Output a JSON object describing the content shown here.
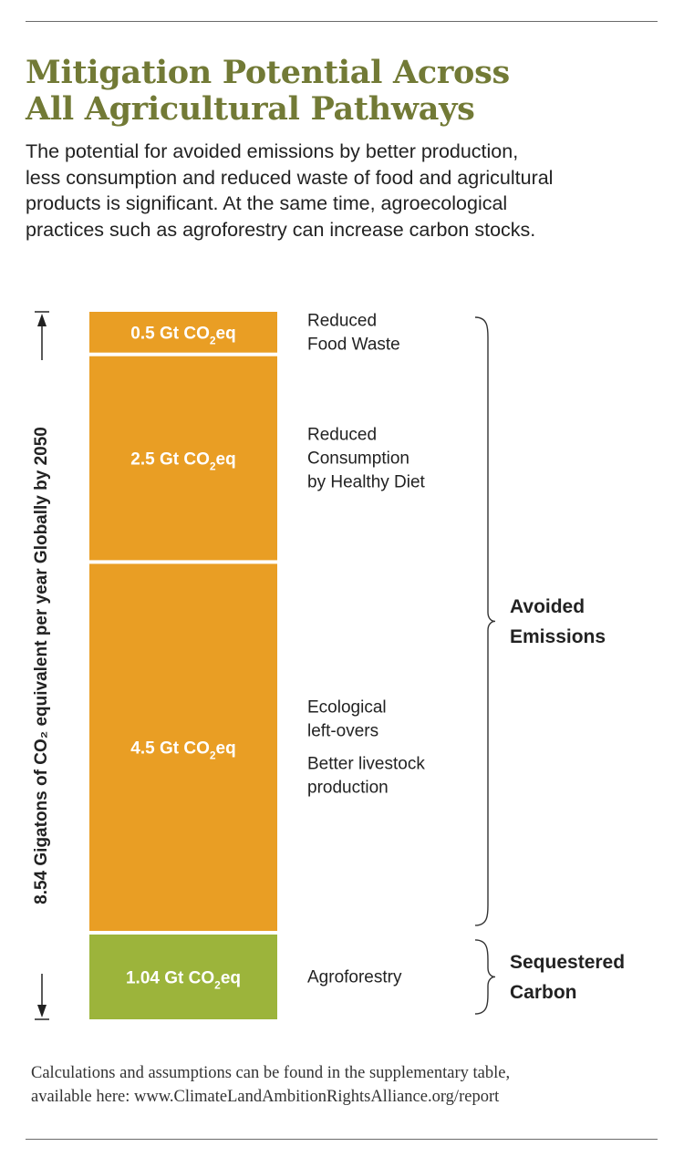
{
  "header": {
    "title_lines": [
      "Mitigation Potential Across",
      "All Agricultural Pathways"
    ],
    "subtitle_lines": [
      "The potential for avoided emissions by better production,",
      "less consumption and reduced waste of food and agricultural",
      "products is significant. At the same time, agroecological",
      "practices such as agroforestry can increase carbon stocks."
    ]
  },
  "chart_data": {
    "type": "bar",
    "stacked": true,
    "orientation": "vertical",
    "unit": "Gt CO2eq",
    "total": 8.54,
    "ylabel": "8.54 Gigatons of CO₂ equivalent per year Globally by 2050",
    "segments": [
      {
        "value": 0.5,
        "value_label": "0.5 Gt CO2eq",
        "label_lines": [
          [
            "Reduced",
            "Food Waste"
          ]
        ],
        "color": "#e99e24",
        "group": "Avoided Emissions"
      },
      {
        "value": 2.5,
        "value_label": "2.5 Gt CO2eq",
        "label_lines": [
          [
            "Reduced",
            "Consumption",
            "by Healthy Diet"
          ]
        ],
        "color": "#e99e24",
        "group": "Avoided Emissions"
      },
      {
        "value": 4.5,
        "value_label": "4.5 Gt CO2eq",
        "label_lines": [
          [
            "Ecological",
            "left-overs"
          ],
          [
            "Better livestock",
            "production"
          ]
        ],
        "color": "#e99e24",
        "group": "Avoided Emissions"
      },
      {
        "value": 1.04,
        "value_label": "1.04 Gt CO2eq",
        "label_lines": [
          [
            "Agroforestry"
          ]
        ],
        "color": "#9cb43b",
        "group": "Sequestered Carbon"
      }
    ],
    "groups": [
      {
        "name": "Avoided Emissions",
        "label_lines": [
          "Avoided",
          "Emissions"
        ]
      },
      {
        "name": "Sequestered Carbon",
        "label_lines": [
          "Sequestered",
          "Carbon"
        ]
      }
    ]
  },
  "footnote": {
    "lines": [
      "Calculations and assumptions can be found in the supplementary table,",
      "available here: www.ClimateLandAmbitionRightsAlliance.org/report"
    ]
  }
}
